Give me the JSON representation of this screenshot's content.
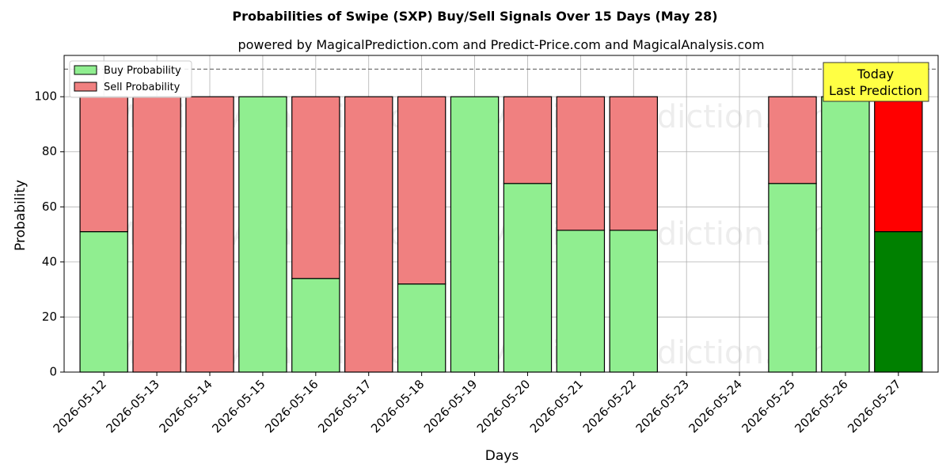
{
  "chart_data": {
    "type": "bar",
    "stacked": true,
    "title": "Probabilities of Swipe (SXP) Buy/Sell Signals Over 15 Days (May 28)",
    "subtitle": "powered by MagicalPrediction.com and Predict-Price.com and MagicalAnalysis.com",
    "xlabel": "Days",
    "ylabel": "Probability",
    "ylim": [
      0,
      115
    ],
    "yticks": [
      0,
      20,
      40,
      60,
      80,
      100
    ],
    "reference_line": 110,
    "grid": true,
    "legend_position": "top-left",
    "categories": [
      "2026-05-12",
      "2026-05-13",
      "2026-05-14",
      "2026-05-15",
      "2026-05-16",
      "2026-05-17",
      "2026-05-18",
      "2026-05-19",
      "2026-05-20",
      "2026-05-21",
      "2026-05-22",
      "2026-05-23",
      "2026-05-24",
      "2026-05-25",
      "2026-05-26",
      "2026-05-27"
    ],
    "series": [
      {
        "name": "Buy Probability",
        "color": "#90ee90",
        "values": [
          51,
          0,
          0,
          100,
          34,
          0,
          32,
          100,
          68.5,
          51.5,
          51.5,
          null,
          null,
          68.5,
          100,
          51
        ]
      },
      {
        "name": "Sell Probability",
        "color": "#f08080",
        "values": [
          49,
          100,
          100,
          0,
          66,
          100,
          68,
          0,
          31.5,
          48.5,
          48.5,
          null,
          null,
          31.5,
          0,
          49
        ]
      }
    ],
    "highlight": {
      "index": 15,
      "buy_color": "#008000",
      "sell_color": "#ff0000",
      "label_lines": [
        "Today",
        "Last Prediction"
      ],
      "box_color": "#ffff44"
    },
    "watermarks": [
      "MagicalAnalysis.com",
      "MagicalPrediction.com"
    ]
  }
}
